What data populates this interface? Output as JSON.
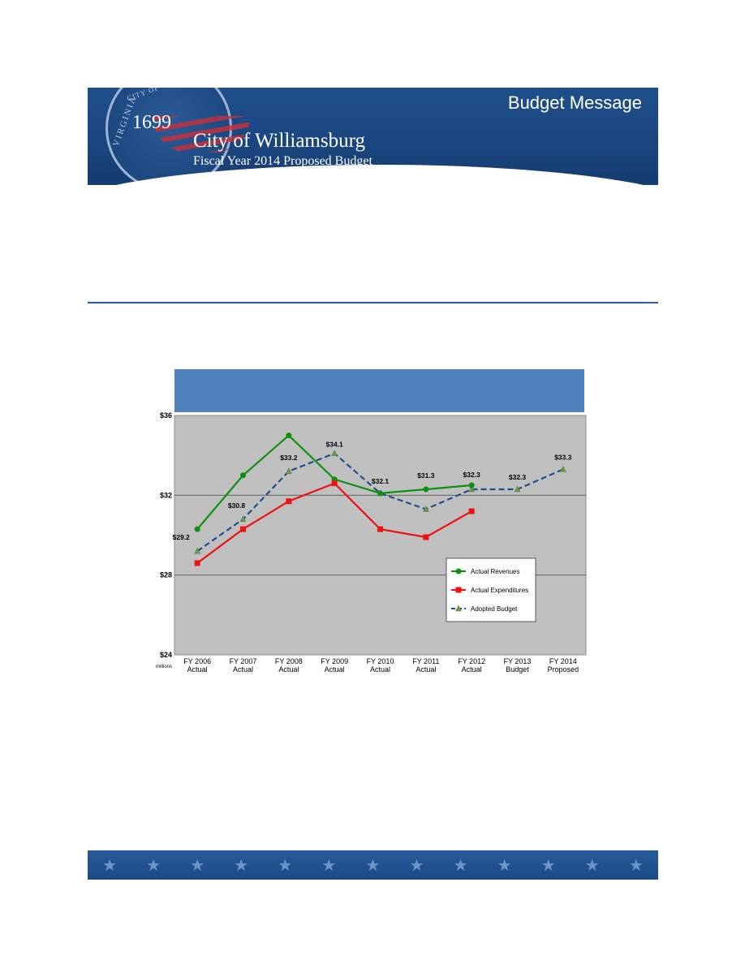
{
  "banner": {
    "seal_year": "1699",
    "seal_text_left": "VIRGINIA",
    "seal_text_top": "CITY OF WILLIAMSBURG",
    "title": "City of Williamsburg",
    "subtitle": "Fiscal Year 2014 Proposed Budget",
    "section": "Budget Message"
  },
  "footer": {
    "star_icon": "star-icon",
    "star_glyph": "★"
  },
  "colors": {
    "banner_blue": "#1f4f8a",
    "chart_header": "#4f81bd",
    "plot_bg": "#c0c0c0",
    "revenues": "#109010",
    "expenditures": "#ee1111",
    "budget": "#1f4e8c"
  },
  "chart_data": {
    "type": "line",
    "title": "",
    "y_unit_label": "millions",
    "ylim": [
      24,
      36
    ],
    "y_ticks": [
      "$24",
      "$28",
      "$32",
      "$36"
    ],
    "categories": [
      [
        "FY 2006",
        "Actual"
      ],
      [
        "FY 2007",
        "Actual"
      ],
      [
        "FY 2008",
        "Actual"
      ],
      [
        "FY 2009",
        "Actual"
      ],
      [
        "FY 2010",
        "Actual"
      ],
      [
        "FY 2011",
        "Actual"
      ],
      [
        "FY 2012",
        "Actual"
      ],
      [
        "FY 2013",
        "Budget"
      ],
      [
        "FY 2014",
        "Proposed"
      ]
    ],
    "grid": true,
    "legend_position": "bottom-right",
    "series": [
      {
        "name": "Actual Revenues",
        "marker": "circle",
        "style": "solid",
        "values": [
          30.3,
          33.0,
          35.0,
          32.8,
          32.1,
          32.3,
          32.5,
          null,
          null
        ]
      },
      {
        "name": "Actual Expenditures",
        "marker": "square",
        "style": "solid",
        "values": [
          28.6,
          30.3,
          31.7,
          32.6,
          30.3,
          29.9,
          31.2,
          null,
          null
        ]
      },
      {
        "name": "Adopted Budget",
        "marker": "triangle",
        "style": "dashed",
        "values": [
          29.2,
          30.8,
          33.2,
          34.1,
          32.1,
          31.3,
          32.3,
          32.3,
          33.3
        ]
      }
    ],
    "data_labels": [
      "$29.2",
      "$30.8",
      "$33.2",
      "$34.1",
      "$32.1",
      "$31.3",
      "$32.3",
      "$32.3",
      "$33.3"
    ]
  }
}
